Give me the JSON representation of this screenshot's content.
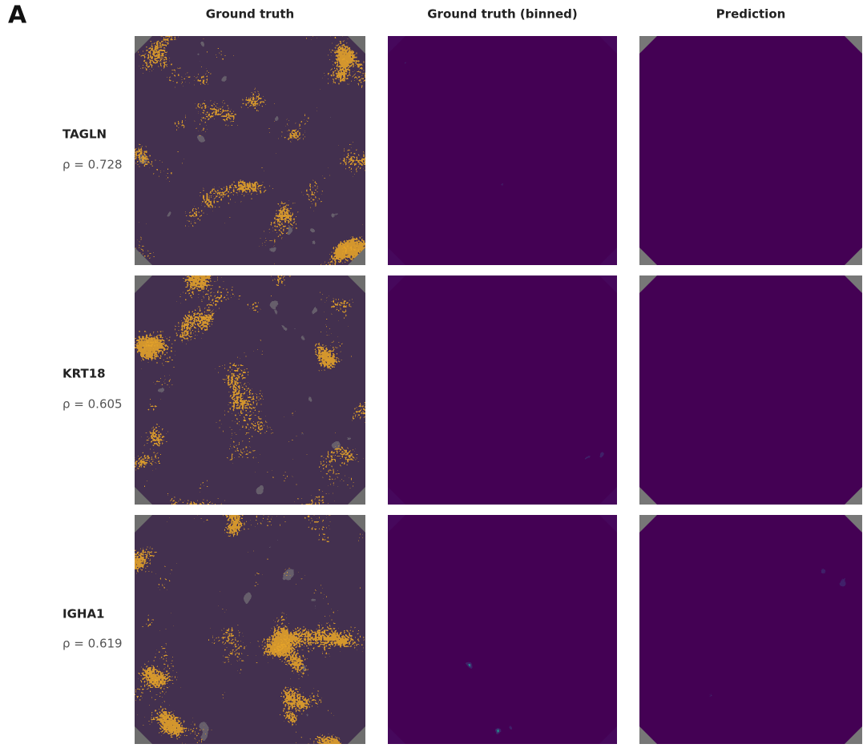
{
  "panel_label": "A",
  "columns": [
    "Ground truth",
    "Ground truth (binned)",
    "Prediction"
  ],
  "rows": [
    {
      "gene": "TAGLN",
      "rho": "ρ = 0.728"
    },
    {
      "gene": "KRT18",
      "rho": "ρ = 0.605"
    },
    {
      "gene": "IGHA1",
      "rho": "ρ = 0.619"
    }
  ]
}
